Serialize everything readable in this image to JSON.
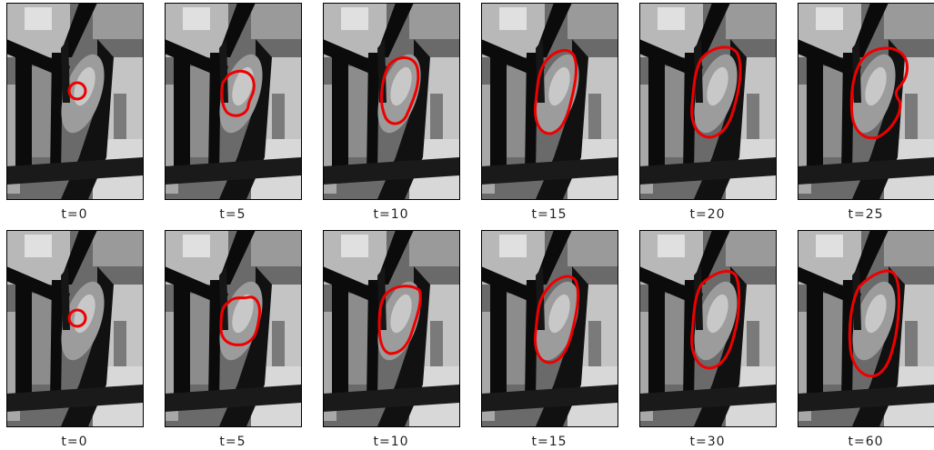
{
  "rows": [
    {
      "panels": [
        {
          "label": "t=0"
        },
        {
          "label": "t=5"
        },
        {
          "label": "t=10"
        },
        {
          "label": "t=15"
        },
        {
          "label": "t=20"
        },
        {
          "label": "t=25"
        }
      ]
    },
    {
      "panels": [
        {
          "label": "t=0"
        },
        {
          "label": "t=5"
        },
        {
          "label": "t=10"
        },
        {
          "label": "t=15"
        },
        {
          "label": "t=30"
        },
        {
          "label": "t=60"
        }
      ]
    }
  ]
}
